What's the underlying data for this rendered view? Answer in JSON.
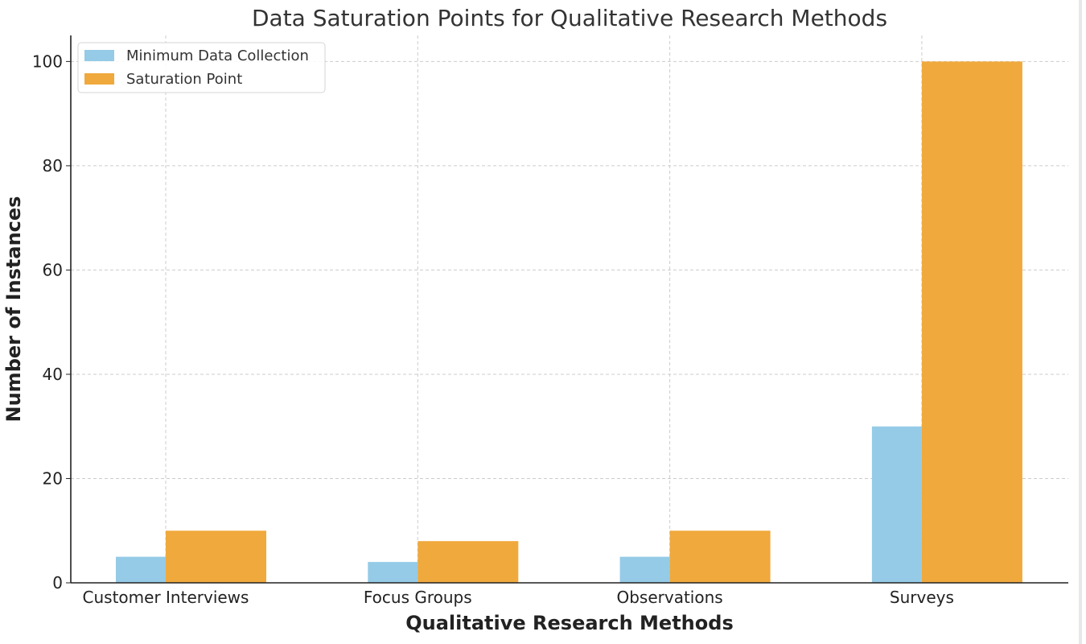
{
  "chart_data": {
    "type": "bar",
    "title": "Data Saturation Points for Qualitative Research Methods",
    "xlabel": "Qualitative Research Methods",
    "ylabel": "Number of Instances",
    "categories": [
      "Customer Interviews",
      "Focus Groups",
      "Observations",
      "Surveys"
    ],
    "series": [
      {
        "name": "Minimum Data Collection",
        "values": [
          5,
          4,
          5,
          30
        ],
        "color": "#95cbe7"
      },
      {
        "name": "Saturation Point",
        "values": [
          10,
          8,
          10,
          100
        ],
        "color": "#f0a93d"
      }
    ],
    "ylim": [
      0,
      105
    ],
    "yticks": [
      0,
      20,
      40,
      60,
      80,
      100
    ],
    "grid": true,
    "legend": "top-left"
  }
}
